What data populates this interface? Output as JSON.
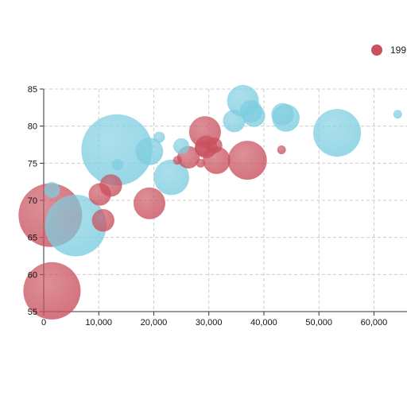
{
  "chart_data": {
    "type": "scatter",
    "title": "",
    "xlabel": "",
    "ylabel": "",
    "xlim": [
      0,
      66000
    ],
    "ylim": [
      55,
      85
    ],
    "x_ticks": [
      0,
      10000,
      20000,
      30000,
      40000,
      50000,
      60000
    ],
    "x_tick_labels": [
      "0",
      "10,000",
      "20,000",
      "30,000",
      "40,000",
      "50,000",
      "60,000"
    ],
    "y_ticks": [
      55,
      60,
      65,
      70,
      75,
      80,
      85
    ],
    "y_tick_labels": [
      "55",
      "60",
      "65",
      "70",
      "75",
      "80",
      "85"
    ],
    "grid": true,
    "legend_position": "top-right",
    "series": [
      {
        "name": "199",
        "color": "#c9505d",
        "points": [
          {
            "x": 1200,
            "y": 68.0,
            "size": 16
          },
          {
            "x": 1500,
            "y": 57.8,
            "size": 13
          },
          {
            "x": 10200,
            "y": 70.8,
            "size": 2
          },
          {
            "x": 10800,
            "y": 67.3,
            "size": 2
          },
          {
            "x": 12200,
            "y": 72.0,
            "size": 2
          },
          {
            "x": 19200,
            "y": 69.6,
            "size": 4
          },
          {
            "x": 24300,
            "y": 75.4,
            "size": 0.3
          },
          {
            "x": 26300,
            "y": 75.8,
            "size": 2
          },
          {
            "x": 28500,
            "y": 75.0,
            "size": 0.3
          },
          {
            "x": 28900,
            "y": 77.0,
            "size": 1
          },
          {
            "x": 29300,
            "y": 79.2,
            "size": 4
          },
          {
            "x": 29500,
            "y": 77.2,
            "size": 2
          },
          {
            "x": 31000,
            "y": 77.4,
            "size": 1
          },
          {
            "x": 31400,
            "y": 75.4,
            "size": 3
          },
          {
            "x": 37000,
            "y": 75.4,
            "size": 6
          },
          {
            "x": 43200,
            "y": 76.8,
            "size": 0.3
          }
        ]
      },
      {
        "name": "",
        "color": "#7dcde0",
        "points": [
          {
            "x": 1500,
            "y": 71.4,
            "size": 1
          },
          {
            "x": 5800,
            "y": 66.6,
            "size": 15
          },
          {
            "x": 13300,
            "y": 76.8,
            "size": 20
          },
          {
            "x": 13400,
            "y": 74.8,
            "size": 0.5
          },
          {
            "x": 19200,
            "y": 76.6,
            "size": 3
          },
          {
            "x": 21000,
            "y": 78.5,
            "size": 0.5
          },
          {
            "x": 23200,
            "y": 73.1,
            "size": 5
          },
          {
            "x": 25000,
            "y": 77.3,
            "size": 1
          },
          {
            "x": 34600,
            "y": 80.7,
            "size": 2
          },
          {
            "x": 36200,
            "y": 83.4,
            "size": 4
          },
          {
            "x": 37700,
            "y": 82.0,
            "size": 2
          },
          {
            "x": 38200,
            "y": 81.4,
            "size": 2
          },
          {
            "x": 43400,
            "y": 81.6,
            "size": 2
          },
          {
            "x": 44000,
            "y": 81.1,
            "size": 3
          },
          {
            "x": 53300,
            "y": 79.1,
            "size": 9
          },
          {
            "x": 64300,
            "y": 81.6,
            "size": 0.3
          }
        ]
      }
    ]
  }
}
